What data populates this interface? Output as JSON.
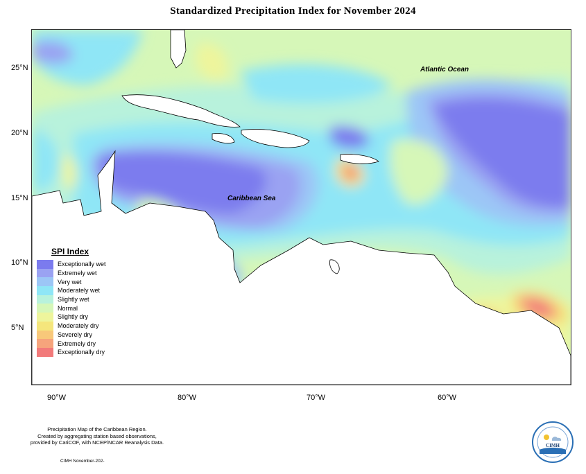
{
  "title": "Standardized Precipitation Index for November 2024",
  "labels": {
    "atlantic": "Atlantic Ocean",
    "caribbean": "Caribbean Sea"
  },
  "axes": {
    "lat_ticks": [
      "25°N",
      "20°N",
      "15°N",
      "10°N",
      "5°N"
    ],
    "lon_ticks": [
      "90°W",
      "80°W",
      "70°W",
      "60°W"
    ]
  },
  "legend": {
    "title": "SPI Index",
    "items": [
      {
        "label": "Exceptionally wet",
        "color": "#7b7bee"
      },
      {
        "label": "Extremely wet",
        "color": "#9aa2f2"
      },
      {
        "label": "Very wet",
        "color": "#9cc6f6"
      },
      {
        "label": "Moderately wet",
        "color": "#8fe6f6"
      },
      {
        "label": "Slightly wet",
        "color": "#b8f2dc"
      },
      {
        "label": "Normal",
        "color": "#d6f7b8"
      },
      {
        "label": "Slightly dry",
        "color": "#eef59c"
      },
      {
        "label": "Moderately dry",
        "color": "#f5e67c"
      },
      {
        "label": "Severely dry",
        "color": "#f8c87a"
      },
      {
        "label": "Extremely dry",
        "color": "#f6a47c"
      },
      {
        "label": "Exceptionally dry",
        "color": "#f27a7a"
      }
    ]
  },
  "footnote": {
    "line1": "Precipitation Map of the Caribbean Region.",
    "line2": "Created by aggregating station based observations,",
    "line3": "provided by CariCOF, with NCEP/NCAR Reanalysis Data."
  },
  "credit": "CIMH November-202-",
  "logo": {
    "text": "CIMH"
  }
}
